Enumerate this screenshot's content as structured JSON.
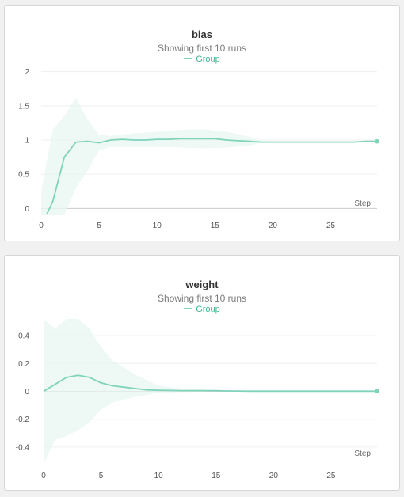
{
  "colors": {
    "line": "#7fd3bb",
    "band": "#e8f5f0",
    "grid": "#efefef",
    "zero": "#cccccc",
    "legend_text": "#3fb693"
  },
  "chart_data": [
    {
      "type": "line",
      "title": "bias",
      "subtitle": "Showing first 10 runs",
      "legend": [
        "Group"
      ],
      "xlabel": "Step",
      "xlim": [
        0,
        29
      ],
      "ylim": [
        -0.1,
        2.1
      ],
      "xticks": [
        0,
        5,
        10,
        15,
        20,
        25
      ],
      "yticks": [
        0,
        0.5,
        1,
        1.5,
        2
      ],
      "series": [
        {
          "name": "Group",
          "x": [
            0.5,
            1,
            2,
            3,
            4,
            5,
            6,
            7,
            8,
            9,
            10,
            11,
            12,
            13,
            14,
            15,
            16,
            17,
            18,
            19,
            20,
            21,
            22,
            23,
            24,
            25,
            26,
            27,
            28,
            29
          ],
          "y": [
            -0.08,
            0.1,
            0.75,
            0.97,
            0.98,
            0.96,
            1.0,
            1.01,
            1.0,
            1.0,
            1.01,
            1.01,
            1.02,
            1.02,
            1.02,
            1.02,
            1.0,
            0.99,
            0.98,
            0.97,
            0.97,
            0.97,
            0.97,
            0.97,
            0.97,
            0.97,
            0.97,
            0.97,
            0.98,
            0.98
          ],
          "band_x": [
            0,
            1,
            2,
            3,
            4,
            5,
            6,
            8,
            10,
            12,
            14,
            16,
            18,
            19,
            20,
            29
          ],
          "band_upper": [
            0.25,
            1.15,
            1.35,
            1.62,
            1.3,
            1.08,
            1.06,
            1.1,
            1.12,
            1.15,
            1.16,
            1.12,
            1.05,
            0.99,
            0.98,
            0.98
          ],
          "band_lower": [
            -0.1,
            -0.1,
            -0.1,
            0.3,
            0.55,
            0.85,
            0.9,
            0.9,
            0.9,
            0.89,
            0.88,
            0.89,
            0.92,
            0.96,
            0.97,
            0.97
          ]
        }
      ]
    },
    {
      "type": "line",
      "title": "weight",
      "subtitle": "Showing first 10 runs",
      "legend": [
        "Group"
      ],
      "xlabel": "Step",
      "xlim": [
        0,
        29
      ],
      "ylim": [
        -0.52,
        0.52
      ],
      "xticks": [
        0,
        5,
        10,
        15,
        20,
        25
      ],
      "yticks": [
        -0.4,
        -0.2,
        0,
        0.2,
        0.4
      ],
      "series": [
        {
          "name": "Group",
          "x": [
            0,
            1,
            2,
            3,
            4,
            5,
            6,
            7,
            8,
            9,
            10,
            11,
            12,
            13,
            14,
            15,
            16,
            17,
            18,
            19,
            20,
            21,
            22,
            23,
            24,
            25,
            26,
            27,
            28,
            29
          ],
          "y": [
            0.0,
            0.05,
            0.1,
            0.115,
            0.1,
            0.06,
            0.04,
            0.03,
            0.02,
            0.01,
            0.008,
            0.006,
            0.005,
            0.005,
            0.005,
            0.005,
            0.003,
            0.002,
            0.001,
            0.001,
            0.001,
            0.001,
            0.001,
            0.001,
            0.001,
            0.001,
            0.001,
            0.001,
            0.001,
            0.001
          ],
          "band_x": [
            0,
            1,
            2,
            3,
            4,
            5,
            6,
            8,
            10,
            12,
            15,
            18,
            29
          ],
          "band_upper": [
            0.52,
            0.45,
            0.52,
            0.52,
            0.45,
            0.32,
            0.22,
            0.12,
            0.04,
            0.02,
            0.01,
            0.005,
            0.003
          ],
          "band_lower": [
            -0.52,
            -0.35,
            -0.32,
            -0.28,
            -0.22,
            -0.13,
            -0.08,
            -0.04,
            -0.01,
            -0.005,
            0.0,
            -0.002,
            -0.002
          ]
        }
      ]
    }
  ]
}
